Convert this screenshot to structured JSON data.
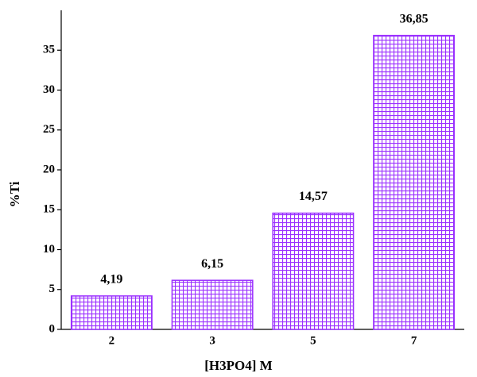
{
  "chart_data": {
    "type": "bar",
    "x_label": "[H3PO4] M",
    "y_label": "%Ti",
    "categories": [
      "2",
      "3",
      "5",
      "7"
    ],
    "values": [
      4.19,
      6.15,
      14.57,
      36.85
    ],
    "value_labels": [
      "4,19",
      "6,15",
      "14,57",
      "36,85"
    ],
    "color": "#9b30ff",
    "ylim": [
      0,
      40
    ],
    "yticks": [
      0,
      5,
      10,
      15,
      20,
      25,
      30,
      35
    ]
  }
}
